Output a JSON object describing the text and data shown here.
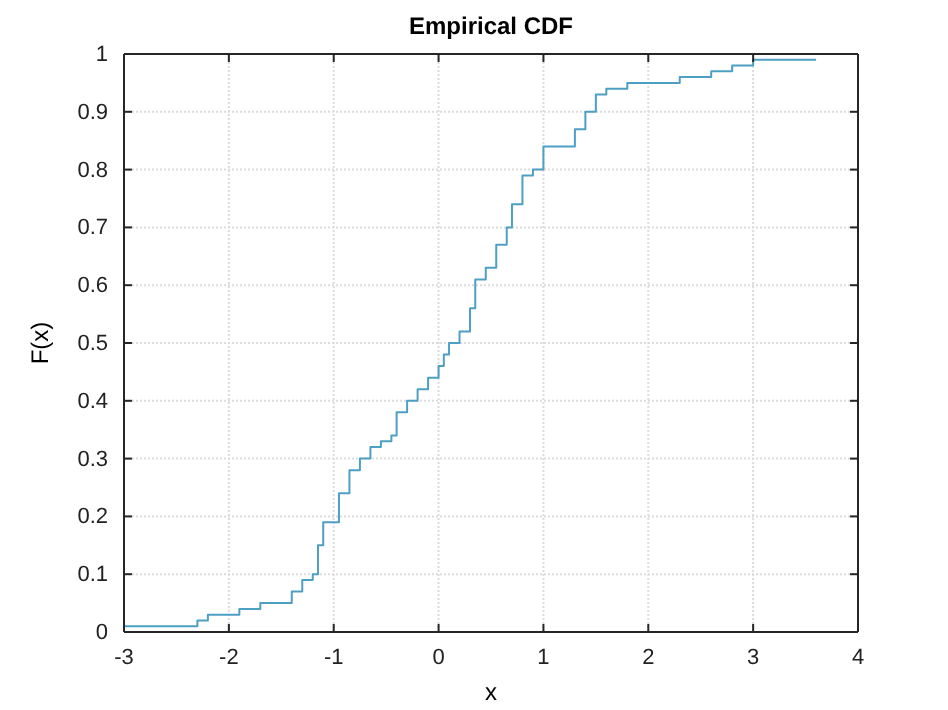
{
  "chart_data": {
    "type": "step",
    "title": "Empirical CDF",
    "xlabel": "x",
    "ylabel": "F(x)",
    "xlim": [
      -3,
      4
    ],
    "ylim": [
      0,
      1
    ],
    "xticks": [
      -3,
      -2,
      -1,
      0,
      1,
      2,
      3,
      4
    ],
    "yticks": [
      0,
      0.1,
      0.2,
      0.3,
      0.4,
      0.5,
      0.6,
      0.7,
      0.8,
      0.9,
      1
    ],
    "grid": true,
    "series": [
      {
        "color": "#4d9fc4",
        "x": [
          -3,
          -2.3,
          -2.2,
          -1.9,
          -1.7,
          -1.4,
          -1.3,
          -1.2,
          -1.15,
          -1.1,
          -0.95,
          -0.85,
          -0.75,
          -0.65,
          -0.55,
          -0.45,
          -0.4,
          -0.3,
          -0.2,
          -0.1,
          0,
          0.05,
          0.1,
          0.2,
          0.3,
          0.35,
          0.45,
          0.55,
          0.65,
          0.7,
          0.8,
          0.9,
          1.0,
          1.2,
          1.3,
          1.4,
          1.5,
          1.6,
          1.8,
          2.3,
          2.6,
          2.8,
          3.0,
          3.6
        ],
        "values": [
          0.01,
          0.02,
          0.03,
          0.04,
          0.05,
          0.07,
          0.09,
          0.1,
          0.15,
          0.19,
          0.24,
          0.28,
          0.3,
          0.32,
          0.33,
          0.34,
          0.38,
          0.4,
          0.42,
          0.44,
          0.46,
          0.48,
          0.5,
          0.52,
          0.56,
          0.61,
          0.63,
          0.67,
          0.7,
          0.74,
          0.79,
          0.8,
          0.84,
          0.84,
          0.87,
          0.9,
          0.93,
          0.94,
          0.95,
          0.96,
          0.97,
          0.98,
          0.99,
          0.99
        ]
      }
    ]
  }
}
